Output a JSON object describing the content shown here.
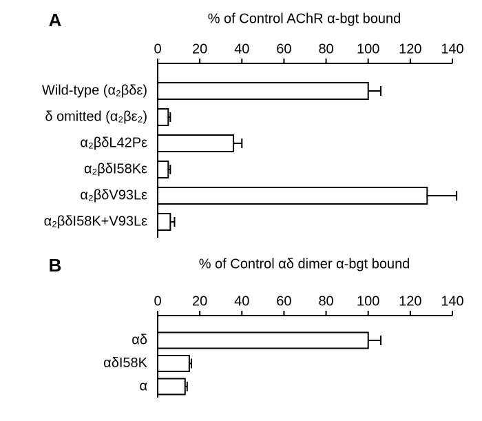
{
  "chart_data": [
    {
      "type": "bar",
      "panel_label": "A",
      "title": "% of Control AChR α-bgt bound",
      "categories": [
        "Wild-type (α₂βδε)",
        "δ omitted (α₂βε₂)",
        "α₂βδL42Pε",
        "α₂βδI58Kε",
        "α₂βδV93Lε",
        "α₂βδI58K+V93Lε"
      ],
      "values": [
        100,
        5,
        36,
        5,
        128,
        6
      ],
      "errors": [
        6,
        1,
        4,
        1,
        14,
        2
      ],
      "color": "#ffffff",
      "xlim": [
        0,
        140
      ],
      "xticks": [
        0,
        20,
        40,
        60,
        80,
        100,
        120,
        140
      ]
    },
    {
      "type": "bar",
      "panel_label": "B",
      "title": "% of Control αδ dimer α-bgt bound",
      "categories": [
        "αδ",
        "αδI58K",
        "α"
      ],
      "values": [
        100,
        15,
        13
      ],
      "errors": [
        6,
        1,
        1
      ],
      "color": "#ffffff",
      "xlim": [
        0,
        140
      ],
      "xticks": [
        0,
        20,
        40,
        60,
        80,
        100,
        120,
        140
      ]
    }
  ]
}
